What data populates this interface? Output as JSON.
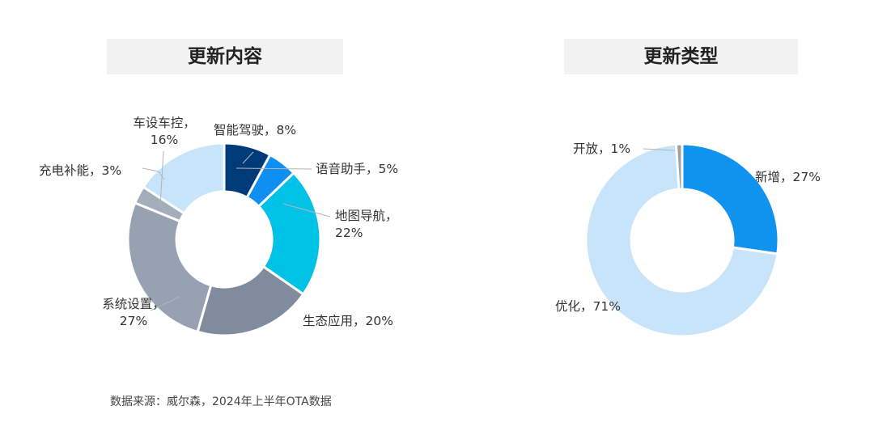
{
  "charts_title": {
    "left": "更新内容",
    "right": "更新类型"
  },
  "source_note": "数据来源：威尔森，2024年上半年OTA数据",
  "chart_data": [
    {
      "type": "pie",
      "title": "更新内容",
      "slices": [
        {
          "name": "智能驾驶",
          "value": 8,
          "label_lines": [
            "智能驾驶，8%"
          ],
          "color": "#003b79"
        },
        {
          "name": "语音助手",
          "value": 5,
          "label_lines": [
            "语音助手，5%"
          ],
          "color": "#0f8ff0"
        },
        {
          "name": "地图导航",
          "value": 22,
          "label_lines": [
            "地图导航，",
            "22%"
          ],
          "color": "#00c1e6"
        },
        {
          "name": "生态应用",
          "value": 20,
          "label_lines": [
            "生态应用，20%"
          ],
          "color": "#808c9e"
        },
        {
          "name": "系统设置",
          "value": 27,
          "label_lines": [
            "系统设置，",
            "27%"
          ],
          "color": "#97a1b2"
        },
        {
          "name": "充电补能",
          "value": 3,
          "label_lines": [
            "充电补能，3%"
          ],
          "color": "#a4adba"
        },
        {
          "name": "车设车控",
          "value": 16,
          "label_lines": [
            "车设车控，",
            "16%"
          ],
          "color": "#c6e4fa"
        }
      ]
    },
    {
      "type": "pie",
      "title": "更新类型",
      "slices": [
        {
          "name": "新增",
          "value": 27,
          "label_lines": [
            "新增，27%"
          ],
          "color": "#0f93ef"
        },
        {
          "name": "优化",
          "value": 71,
          "label_lines": [
            "优化，71%"
          ],
          "color": "#c7e4fa"
        },
        {
          "name": "开放",
          "value": 1,
          "label_lines": [
            "开放，1%"
          ],
          "color": "#9aa0a8"
        }
      ]
    }
  ]
}
